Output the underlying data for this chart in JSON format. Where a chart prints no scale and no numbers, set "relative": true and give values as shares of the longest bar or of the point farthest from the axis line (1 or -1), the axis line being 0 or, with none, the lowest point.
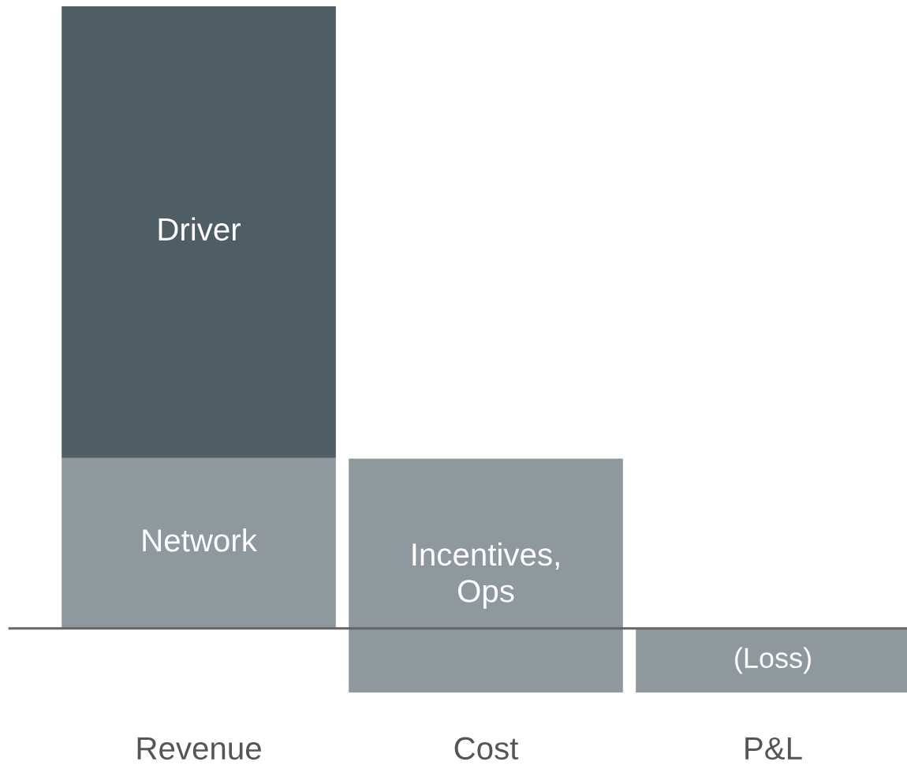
{
  "chart_data": {
    "type": "bar",
    "relative": true,
    "stacked": true,
    "categories": [
      "Revenue",
      "Cost",
      "P&L"
    ],
    "series": [
      {
        "color": "#8f989c",
        "values": [
          0.274,
          0.273,
          null
        ]
      },
      {
        "color": "#4f5d65",
        "values": [
          0.726,
          null,
          null
        ]
      },
      {
        "color": "#8f989c",
        "values": [
          null,
          -0.103,
          -0.103
        ]
      }
    ],
    "annotations": [
      "Network",
      "Incentives,\nOps",
      "Driver",
      "(Loss)"
    ],
    "grid": false,
    "legend": false
  }
}
